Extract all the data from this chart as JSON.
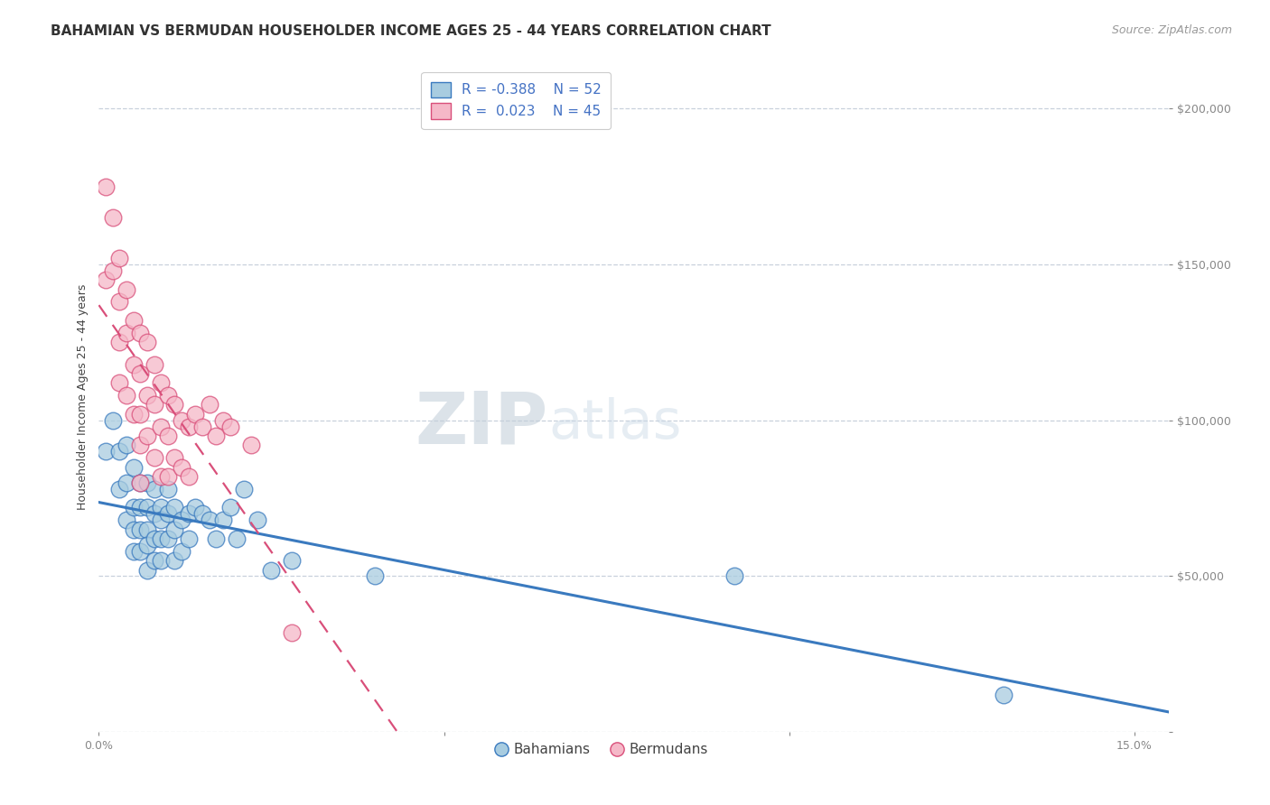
{
  "title": "BAHAMIAN VS BERMUDAN HOUSEHOLDER INCOME AGES 25 - 44 YEARS CORRELATION CHART",
  "source": "Source: ZipAtlas.com",
  "xlabel": "",
  "ylabel": "Householder Income Ages 25 - 44 years",
  "legend_labels": [
    "Bahamians",
    "Bermudans"
  ],
  "legend_r": [
    "R = -0.388",
    "R =  0.023"
  ],
  "legend_n": [
    "N = 52",
    "N = 45"
  ],
  "bahamian_color": "#a8cce0",
  "bermudan_color": "#f5b8c8",
  "bahamian_line_color": "#3a7abf",
  "bermudan_line_color": "#d94f7a",
  "background_color": "#ffffff",
  "grid_color": "#c8d0dc",
  "watermark_zip": "ZIP",
  "watermark_atlas": "atlas",
  "xlim": [
    0.0,
    0.155
  ],
  "ylim": [
    0,
    215000
  ],
  "yticks": [
    0,
    50000,
    100000,
    150000,
    200000
  ],
  "ytick_labels": [
    "",
    "$50,000",
    "$100,000",
    "$150,000",
    "$200,000"
  ],
  "xticks": [
    0.0,
    0.05,
    0.1,
    0.15
  ],
  "xtick_labels": [
    "0.0%",
    "",
    "",
    "15.0%"
  ],
  "bahamian_x": [
    0.001,
    0.002,
    0.003,
    0.003,
    0.004,
    0.004,
    0.004,
    0.005,
    0.005,
    0.005,
    0.005,
    0.006,
    0.006,
    0.006,
    0.006,
    0.007,
    0.007,
    0.007,
    0.007,
    0.007,
    0.008,
    0.008,
    0.008,
    0.008,
    0.009,
    0.009,
    0.009,
    0.009,
    0.01,
    0.01,
    0.01,
    0.011,
    0.011,
    0.011,
    0.012,
    0.012,
    0.013,
    0.013,
    0.014,
    0.015,
    0.016,
    0.017,
    0.018,
    0.019,
    0.02,
    0.021,
    0.023,
    0.025,
    0.028,
    0.04,
    0.092,
    0.131
  ],
  "bahamian_y": [
    90000,
    100000,
    90000,
    78000,
    92000,
    80000,
    68000,
    85000,
    72000,
    65000,
    58000,
    80000,
    72000,
    65000,
    58000,
    80000,
    72000,
    65000,
    60000,
    52000,
    78000,
    70000,
    62000,
    55000,
    72000,
    68000,
    62000,
    55000,
    78000,
    70000,
    62000,
    72000,
    65000,
    55000,
    68000,
    58000,
    70000,
    62000,
    72000,
    70000,
    68000,
    62000,
    68000,
    72000,
    62000,
    78000,
    68000,
    52000,
    55000,
    50000,
    50000,
    12000
  ],
  "bermudan_x": [
    0.001,
    0.001,
    0.002,
    0.002,
    0.003,
    0.003,
    0.003,
    0.003,
    0.004,
    0.004,
    0.004,
    0.005,
    0.005,
    0.005,
    0.006,
    0.006,
    0.006,
    0.006,
    0.006,
    0.007,
    0.007,
    0.007,
    0.008,
    0.008,
    0.008,
    0.009,
    0.009,
    0.009,
    0.01,
    0.01,
    0.01,
    0.011,
    0.011,
    0.012,
    0.012,
    0.013,
    0.013,
    0.014,
    0.015,
    0.016,
    0.017,
    0.018,
    0.019,
    0.022,
    0.028
  ],
  "bermudan_y": [
    175000,
    145000,
    165000,
    148000,
    152000,
    138000,
    125000,
    112000,
    142000,
    128000,
    108000,
    132000,
    118000,
    102000,
    128000,
    115000,
    102000,
    92000,
    80000,
    125000,
    108000,
    95000,
    118000,
    105000,
    88000,
    112000,
    98000,
    82000,
    108000,
    95000,
    82000,
    105000,
    88000,
    100000,
    85000,
    98000,
    82000,
    102000,
    98000,
    105000,
    95000,
    100000,
    98000,
    92000,
    32000
  ],
  "title_fontsize": 11,
  "axis_fontsize": 9,
  "tick_fontsize": 9,
  "source_fontsize": 9,
  "legend_fontsize": 11
}
